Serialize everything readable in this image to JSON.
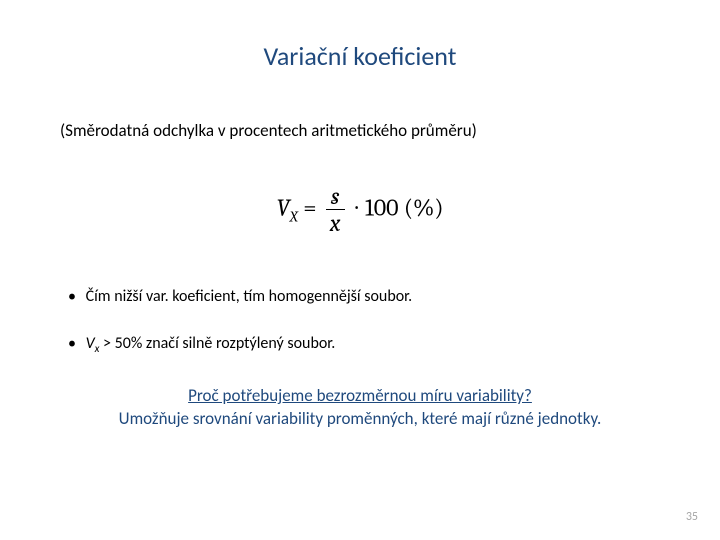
{
  "title": {
    "text": "Variační koeficient",
    "color": "#1f497d",
    "fontsize": 26
  },
  "subtitle": {
    "text": "(Směrodatná odchylka v procentech aritmetického průměru)",
    "color": "#000000",
    "fontsize": 17
  },
  "formula": {
    "lhs_var": "V",
    "lhs_sub": "X",
    "numerator": "s",
    "denominator": "x̄",
    "multiplier": "100",
    "unit": "(%)",
    "color": "#000000",
    "fontsize": 24
  },
  "bullets": [
    {
      "dot": "•",
      "text": "Čím nižší var. koeficient, tím homogennější soubor.",
      "color": "#000000",
      "fontsize": 16
    },
    {
      "dot": "•",
      "prefix_ital": "V",
      "prefix_sub": "x",
      "rest": " > 50%  značí silně rozptýlený soubor.",
      "color": "#000000",
      "fontsize": 16
    }
  ],
  "question": {
    "text": "Proč potřebujeme bezrozměrnou míru variability?",
    "color": "#1f497d",
    "fontsize": 17
  },
  "answer": {
    "text": "Umožňuje srovnání variability proměnných, které mají různé jednotky.",
    "color": "#1f497d",
    "fontsize": 17
  },
  "pagenum": {
    "text": "35",
    "color": "#a6a6a6",
    "fontsize": 12
  },
  "background_color": "#ffffff"
}
